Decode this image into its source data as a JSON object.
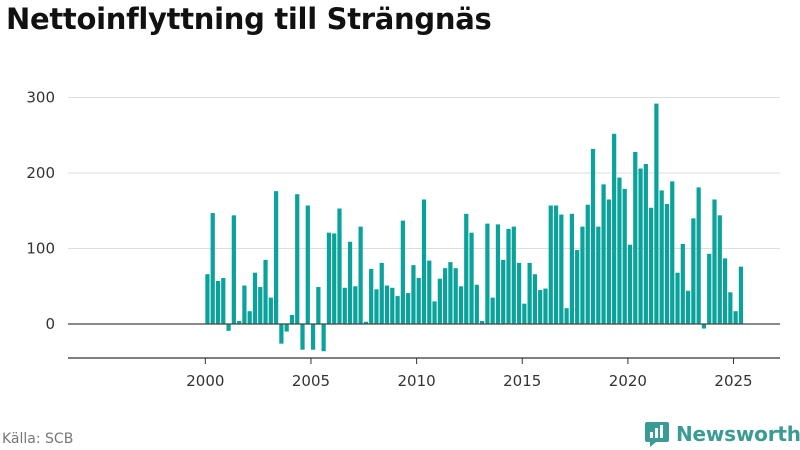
{
  "chart_data": {
    "type": "bar",
    "title": "Nettoinflyttning till Strängnäs",
    "xlabel": "",
    "ylabel": "",
    "x_start": 2000.0,
    "x_step": 0.25,
    "values": [
      66,
      147,
      57,
      61,
      -9,
      144,
      4,
      51,
      17,
      68,
      49,
      85,
      35,
      176,
      -26,
      -10,
      12,
      172,
      -34,
      157,
      -34,
      49,
      -36,
      121,
      120,
      153,
      48,
      109,
      50,
      129,
      3,
      73,
      46,
      81,
      51,
      48,
      37,
      137,
      41,
      78,
      61,
      165,
      84,
      30,
      60,
      74,
      82,
      74,
      50,
      146,
      121,
      52,
      4,
      133,
      35,
      132,
      85,
      126,
      129,
      81,
      27,
      81,
      66,
      45,
      47,
      157,
      157,
      145,
      21,
      146,
      98,
      129,
      158,
      232,
      129,
      185,
      165,
      252,
      194,
      179,
      105,
      228,
      206,
      212,
      154,
      292,
      177,
      159,
      189,
      68,
      106,
      44,
      140,
      181,
      -6,
      93,
      165,
      144,
      87,
      42,
      17,
      76
    ],
    "xlim": [
      1993.5,
      2027.2
    ],
    "ylim": [
      -45,
      310
    ],
    "xticks": [
      "2000",
      "2005",
      "2010",
      "2015",
      "2020",
      "2025"
    ],
    "yticks": [
      "0",
      "100",
      "200",
      "300"
    ],
    "grid": true,
    "bar_color": "#0aa39b"
  },
  "footer": {
    "source": "Källa: SCB",
    "brand": "Newsworthy",
    "brand_icon": "newsworthy-logo-icon"
  }
}
